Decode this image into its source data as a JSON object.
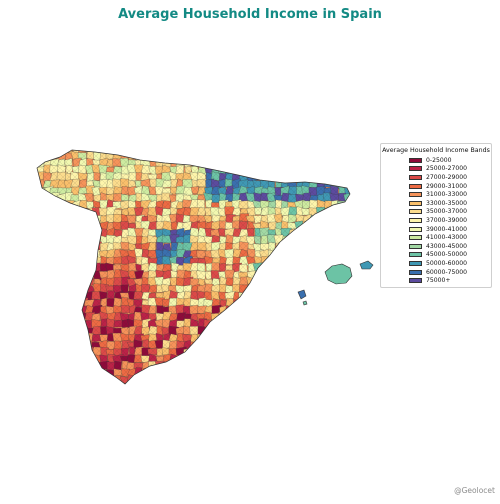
{
  "title": "Average Household Income in Spain",
  "credit": "@Geolocet",
  "legend": {
    "title": "Average Household Income Bands",
    "placement": "right",
    "items": [
      {
        "label": "0-25000",
        "color": "#8e0b3a"
      },
      {
        "label": "25000-27000",
        "color": "#bb2247"
      },
      {
        "label": "27000-29000",
        "color": "#db4a48"
      },
      {
        "label": "29000-31000",
        "color": "#ec6a43"
      },
      {
        "label": "31000-33000",
        "color": "#f5935a"
      },
      {
        "label": "33000-35000",
        "color": "#f9bf6b"
      },
      {
        "label": "35000-37000",
        "color": "#fbdc8d"
      },
      {
        "label": "37000-39000",
        "color": "#fdf4ab"
      },
      {
        "label": "39000-41000",
        "color": "#f1f8b0"
      },
      {
        "label": "41000-43000",
        "color": "#cdeaa0"
      },
      {
        "label": "43000-45000",
        "color": "#a2d8a4"
      },
      {
        "label": "45000-50000",
        "color": "#6cc3a5"
      },
      {
        "label": "50000-60000",
        "color": "#3f98b4"
      },
      {
        "label": "60000-75000",
        "color": "#3a6fae"
      },
      {
        "label": "75000+",
        "color": "#5c4b9e"
      }
    ]
  },
  "map": {
    "region": "Spain",
    "type": "choropleth",
    "variable": "Average Household Income"
  }
}
